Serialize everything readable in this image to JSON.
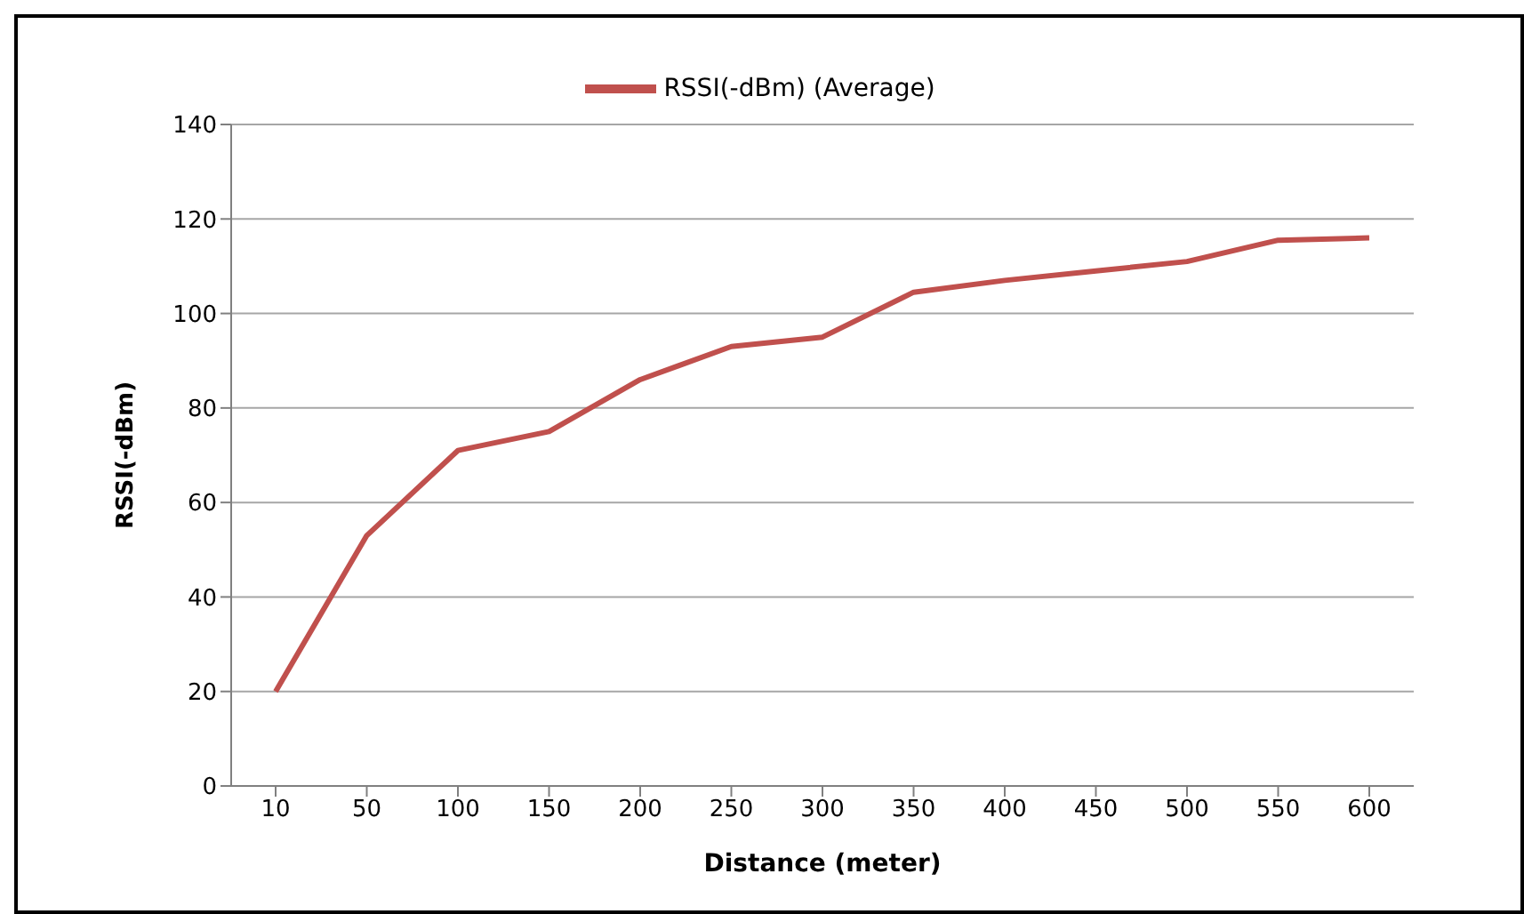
{
  "chart_data": {
    "type": "line",
    "xlabel": "Distance (meter)",
    "ylabel": "RSSI(-dBm)",
    "categories": [
      "10",
      "50",
      "100",
      "150",
      "200",
      "250",
      "300",
      "350",
      "400",
      "450",
      "500",
      "550",
      "600"
    ],
    "series": [
      {
        "name": "RSSI(-dBm) (Average)",
        "color": "#c0504d",
        "values": [
          20,
          53,
          71,
          75,
          86,
          93,
          95,
          104.5,
          107,
          109,
          111,
          115.5,
          116
        ]
      }
    ],
    "ylim": [
      0,
      140
    ],
    "yticks": [
      0,
      20,
      40,
      60,
      80,
      100,
      120,
      140
    ],
    "grid": "y",
    "legend": "top",
    "marker": "none",
    "line_style": "solid"
  }
}
